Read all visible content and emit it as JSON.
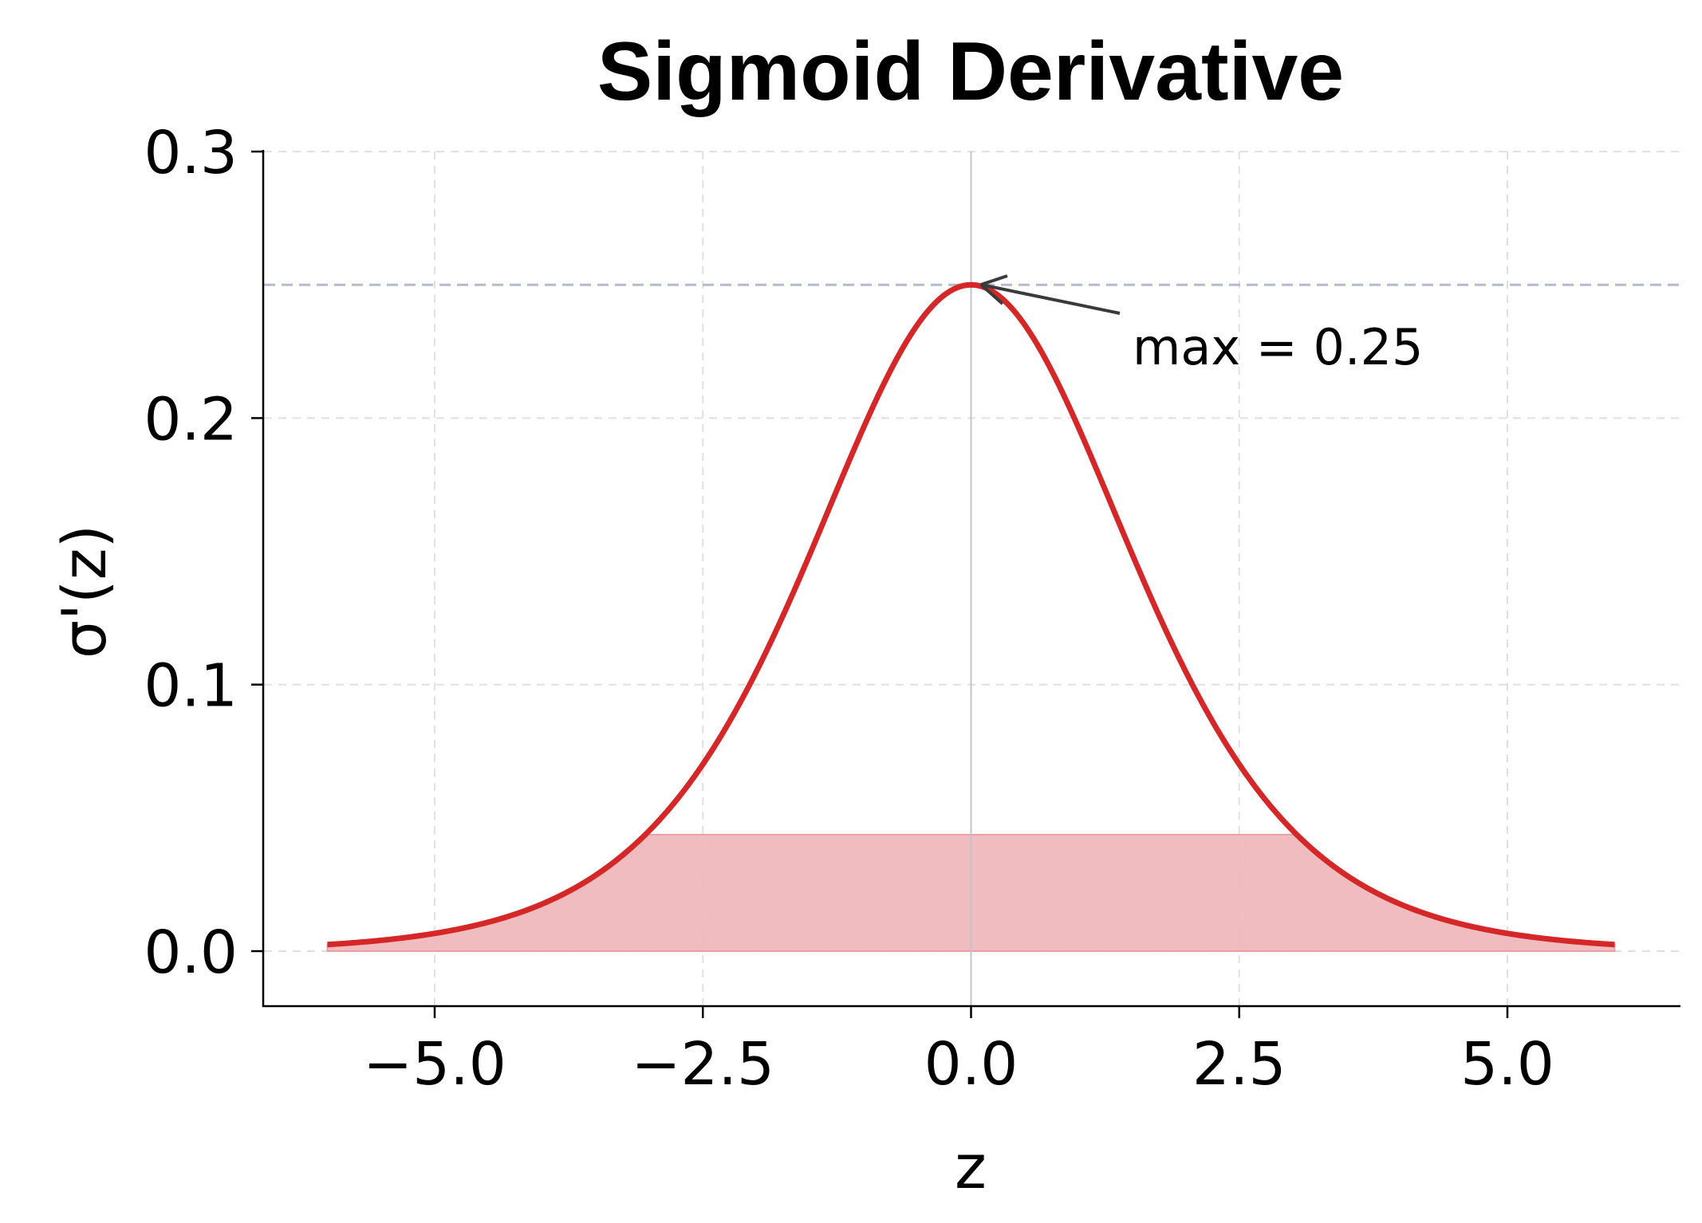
{
  "chart_data": {
    "type": "line",
    "title": "Sigmoid Derivative",
    "xlabel": "z",
    "ylabel": "σ'(z)",
    "xlim": [
      -6.6,
      6.6
    ],
    "ylim": [
      -0.02,
      0.3
    ],
    "xticks": [
      -5.0,
      -2.5,
      0.0,
      2.5,
      5.0
    ],
    "xtick_labels": [
      "−5.0",
      "−2.5",
      "0.0",
      "2.5",
      "5.0"
    ],
    "yticks": [
      0.0,
      0.1,
      0.2,
      0.3
    ],
    "ytick_labels": [
      "0.0",
      "0.1",
      "0.2",
      "0.3"
    ],
    "grid": true,
    "series": [
      {
        "name": "σ'(z)",
        "color": "#d62728",
        "function": "sigmoid(z) * (1 - sigmoid(z))",
        "x_range": [
          -6,
          6
        ],
        "x": [
          -6,
          -5,
          -4,
          -3,
          -2.5,
          -2,
          -1.5,
          -1,
          -0.5,
          0,
          0.5,
          1,
          1.5,
          2,
          2.5,
          3,
          4,
          5,
          6
        ],
        "values": [
          0.0025,
          0.0066,
          0.0177,
          0.0452,
          0.0701,
          0.105,
          0.1491,
          0.1966,
          0.235,
          0.25,
          0.235,
          0.1966,
          0.1491,
          0.105,
          0.0701,
          0.0452,
          0.0177,
          0.0066,
          0.0025
        ]
      }
    ],
    "fill": {
      "description": "shaded area under curve, capped at ~0.044",
      "color": "#f0b9bc",
      "cap_value": 0.0437,
      "x_range": [
        -6,
        6
      ]
    },
    "reference_lines": [
      {
        "orientation": "horizontal",
        "value": 0.25,
        "color": "#b4bccb",
        "style": "dashed"
      },
      {
        "orientation": "vertical",
        "value": 0.0,
        "color": "#c0c4cc",
        "style": "solid"
      }
    ],
    "annotations": [
      {
        "text": "max = 0.25",
        "xy": [
          0,
          0.25
        ],
        "xytext": [
          1.5,
          0.22
        ],
        "arrow": true
      }
    ]
  },
  "labels": {
    "title": "Sigmoid Derivative",
    "xlabel": "z",
    "ylabel": "σ'(z)",
    "annotation": "max = 0.25",
    "xticks": [
      "−5.0",
      "−2.5",
      "0.0",
      "2.5",
      "5.0"
    ],
    "yticks": [
      "0.0",
      "0.1",
      "0.2",
      "0.3"
    ]
  }
}
